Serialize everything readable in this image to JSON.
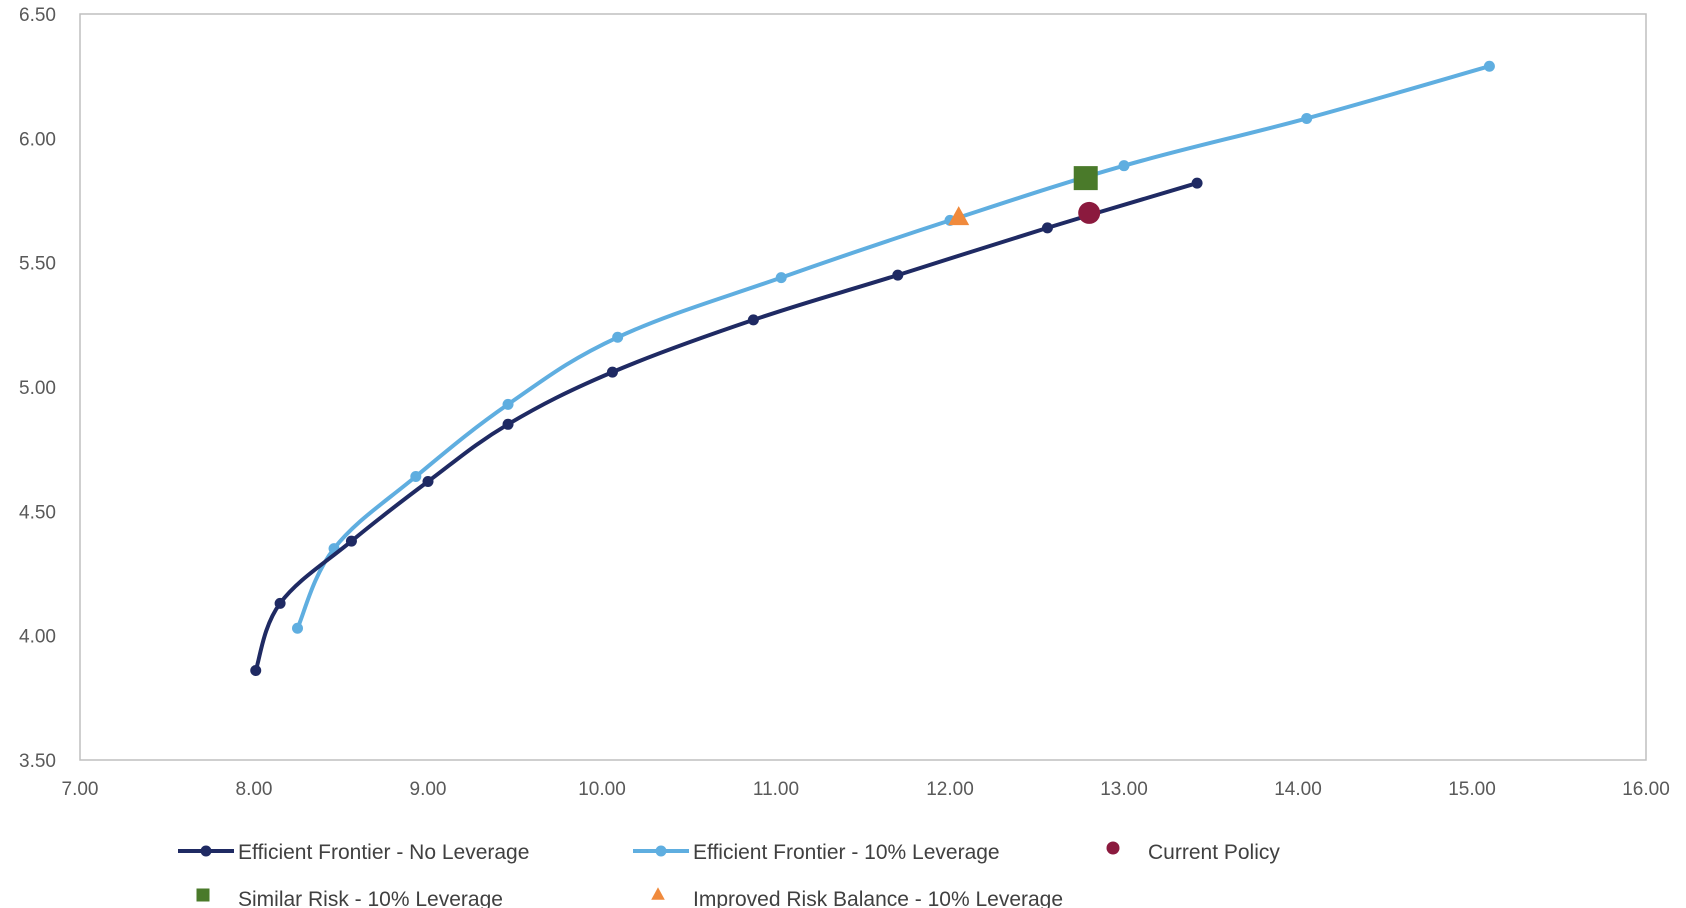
{
  "chart_data": {
    "type": "scatter",
    "title": "",
    "xlabel": "",
    "ylabel": "",
    "xlim": [
      7.0,
      16.0
    ],
    "ylim": [
      3.5,
      6.5
    ],
    "x_ticks": [
      "7.00",
      "8.00",
      "9.00",
      "10.00",
      "11.00",
      "12.00",
      "13.00",
      "14.00",
      "15.00",
      "16.00"
    ],
    "y_ticks": [
      "3.50",
      "4.00",
      "4.50",
      "5.00",
      "5.50",
      "6.00",
      "6.50"
    ],
    "grid": false,
    "legend_position": "bottom",
    "series": [
      {
        "name": "Efficient Frontier - No Leverage",
        "kind": "line",
        "marker": "circle",
        "color": "#1F2A63",
        "points": [
          [
            8.01,
            3.86
          ],
          [
            8.15,
            4.13
          ],
          [
            8.56,
            4.38
          ],
          [
            9.0,
            4.62
          ],
          [
            9.46,
            4.85
          ],
          [
            10.06,
            5.06
          ],
          [
            10.87,
            5.27
          ],
          [
            11.7,
            5.45
          ],
          [
            12.56,
            5.64
          ],
          [
            13.42,
            5.82
          ]
        ]
      },
      {
        "name": "Efficient Frontier - 10% Leverage",
        "kind": "line",
        "marker": "circle",
        "color": "#5FAEE0",
        "points": [
          [
            8.25,
            4.03
          ],
          [
            8.46,
            4.35
          ],
          [
            8.93,
            4.64
          ],
          [
            9.46,
            4.93
          ],
          [
            10.09,
            5.2
          ],
          [
            11.03,
            5.44
          ],
          [
            12.0,
            5.67
          ],
          [
            13.0,
            5.89
          ],
          [
            14.05,
            6.08
          ],
          [
            15.1,
            6.29
          ]
        ]
      },
      {
        "name": "Current Policy",
        "kind": "point",
        "marker": "circle",
        "color": "#8B1A3E",
        "points": [
          [
            12.8,
            5.7
          ]
        ]
      },
      {
        "name": "Similar Risk - 10% Leverage",
        "kind": "point",
        "marker": "square",
        "color": "#4A7A2A",
        "points": [
          [
            12.78,
            5.84
          ]
        ]
      },
      {
        "name": "Improved Risk Balance - 10% Leverage",
        "kind": "point",
        "marker": "triangle",
        "color": "#F08A3C",
        "points": [
          [
            12.05,
            5.68
          ]
        ]
      }
    ]
  }
}
